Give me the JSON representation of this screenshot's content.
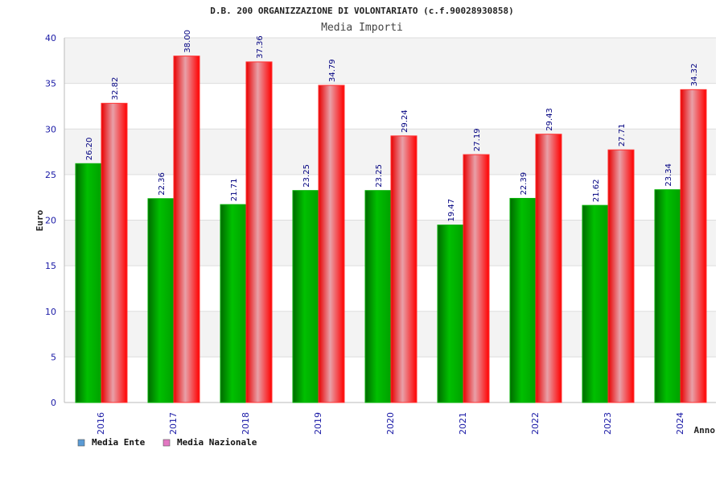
{
  "chart_data": {
    "type": "bar",
    "title": "D.B. 200 ORGANIZZAZIONE DI VOLONTARIATO (c.f.90028930858)",
    "subtitle": "Media Importi",
    "ylabel": "Euro",
    "xlabel": "Anno",
    "ylim": [
      0,
      40
    ],
    "yticks": [
      0,
      5,
      10,
      15,
      20,
      25,
      30,
      35,
      40
    ],
    "categories": [
      "2016",
      "2017",
      "2018",
      "2019",
      "2020",
      "2021",
      "2022",
      "2023",
      "2024"
    ],
    "series": [
      {
        "name": "Media Ente",
        "color": "#00a000",
        "values": [
          26.2,
          22.36,
          21.71,
          23.25,
          23.25,
          19.47,
          22.39,
          21.62,
          23.34
        ],
        "labels": [
          "26.20",
          "22.36",
          "21.71",
          "23.25",
          "23.25",
          "19.47",
          "22.39",
          "21.62",
          "23.34"
        ]
      },
      {
        "name": "Media Nazionale",
        "color": "#ff0000",
        "values": [
          32.82,
          38.0,
          37.36,
          34.79,
          29.24,
          27.19,
          29.43,
          27.71,
          34.32
        ],
        "labels": [
          "32.82",
          "38.00",
          "37.36",
          "34.79",
          "29.24",
          "27.19",
          "29.43",
          "27.71",
          "34.32"
        ]
      }
    ],
    "legend": {
      "placement": "bottom-left",
      "items": [
        {
          "label": "Media Ente",
          "swatch_color": "#5b9bd5"
        },
        {
          "label": "Media Nazionale",
          "swatch_color": "#e377c2"
        }
      ]
    },
    "grid": true,
    "colors": {
      "band_light": "#f3f3f3",
      "band_white": "#ffffff",
      "gridline": "#dddddd",
      "tick_text": "#1a1aa6",
      "data_label": "#000080"
    }
  }
}
